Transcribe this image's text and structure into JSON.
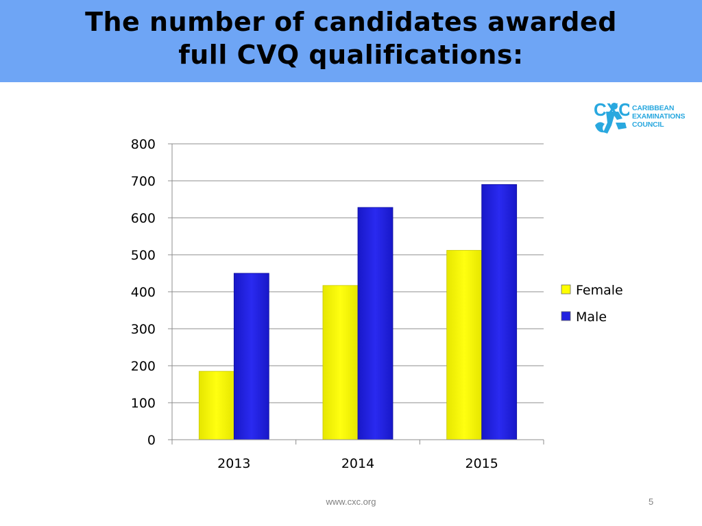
{
  "slide": {
    "title_line1": "The number of candidates awarded",
    "title_line2": "full CVQ qualifications:",
    "header_color": "#6ea5f5",
    "footer_url": "www.cxc.org",
    "page_number": "5"
  },
  "logo": {
    "mark": "CXC",
    "line1": "CARIBBEAN",
    "line2": "EXAMINATIONS",
    "line3": "COUNCIL",
    "color": "#29a8df"
  },
  "chart_data": {
    "type": "bar",
    "title": "",
    "xlabel": "",
    "ylabel": "",
    "categories": [
      "2013",
      "2014",
      "2015"
    ],
    "series": [
      {
        "name": "Female",
        "values": [
          185,
          417,
          512
        ],
        "color": "#ffff00"
      },
      {
        "name": "Male",
        "values": [
          450,
          628,
          690
        ],
        "color": "#2222e0"
      }
    ],
    "ylim": [
      0,
      800
    ],
    "yticks": [
      0,
      100,
      200,
      300,
      400,
      500,
      600,
      700,
      800
    ],
    "grid": true,
    "legend": "right"
  }
}
